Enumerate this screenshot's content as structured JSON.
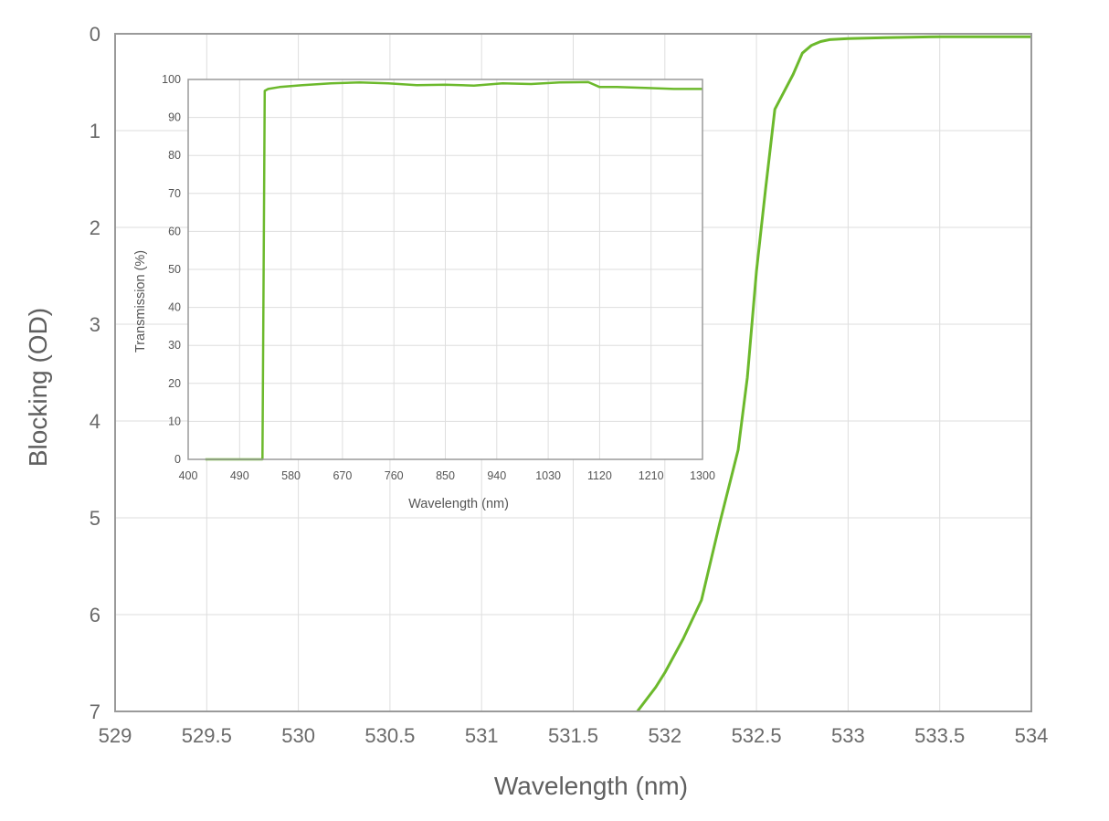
{
  "colors": {
    "series": "#6cb92c",
    "frame": "#9a9a9a",
    "grid": "#dedede"
  },
  "chart_data": [
    {
      "type": "line",
      "xlabel": "Wavelength (nm)",
      "ylabel": "Blocking (OD)",
      "xlim": [
        529,
        534
      ],
      "ylim": [
        7,
        0
      ],
      "y_inverted": true,
      "grid": true,
      "x_ticks": [
        529,
        529.5,
        530,
        530.5,
        531,
        531.5,
        532,
        532.5,
        533,
        533.5,
        534
      ],
      "x_tick_labels": [
        "529",
        "529.5",
        "530",
        "530.5",
        "531",
        "531.5",
        "532",
        "532.5",
        "533",
        "533.5",
        "534"
      ],
      "y_ticks": [
        0,
        1,
        2,
        3,
        4,
        5,
        6,
        7
      ],
      "y_tick_labels": [
        "0",
        "1",
        "2",
        "3",
        "4",
        "5",
        "6",
        "7"
      ],
      "series": [
        {
          "x": [
            531.85,
            531.95,
            532.0,
            532.1,
            532.2,
            532.3,
            532.4,
            532.45,
            532.5,
            532.55,
            532.6,
            532.65,
            532.7,
            532.75,
            532.8,
            532.85,
            532.9,
            533.0,
            533.2,
            533.5,
            534.0
          ],
          "y": [
            7.0,
            6.75,
            6.6,
            6.25,
            5.85,
            5.05,
            4.3,
            3.55,
            2.45,
            1.6,
            0.78,
            0.6,
            0.42,
            0.2,
            0.12,
            0.08,
            0.06,
            0.05,
            0.04,
            0.03,
            0.03
          ]
        }
      ]
    },
    {
      "type": "line",
      "xlabel": "Wavelength (nm)",
      "ylabel": "Transmission (%)",
      "xlim": [
        400,
        1300
      ],
      "ylim": [
        0,
        100
      ],
      "grid": true,
      "x_ticks": [
        400,
        490,
        580,
        670,
        760,
        850,
        940,
        1030,
        1120,
        1210,
        1300
      ],
      "x_tick_labels": [
        "400",
        "490",
        "580",
        "670",
        "760",
        "850",
        "940",
        "1030",
        "1120",
        "1210",
        "1300"
      ],
      "y_ticks": [
        0,
        10,
        20,
        30,
        40,
        50,
        60,
        70,
        80,
        90,
        100
      ],
      "y_tick_labels": [
        "0",
        "10",
        "20",
        "30",
        "40",
        "50",
        "60",
        "70",
        "80",
        "90",
        "100"
      ],
      "series": [
        {
          "x": [
            430,
            530,
            532,
            534,
            540,
            560,
            600,
            650,
            700,
            750,
            800,
            850,
            900,
            950,
            1000,
            1050,
            1100,
            1120,
            1150,
            1200,
            1250,
            1300
          ],
          "y": [
            0,
            0,
            50,
            97,
            97.5,
            98,
            98.5,
            99,
            99.2,
            99,
            98.5,
            98.6,
            98.4,
            99,
            98.8,
            99.2,
            99.3,
            98,
            98,
            97.8,
            97.5,
            97.5
          ]
        }
      ]
    }
  ]
}
